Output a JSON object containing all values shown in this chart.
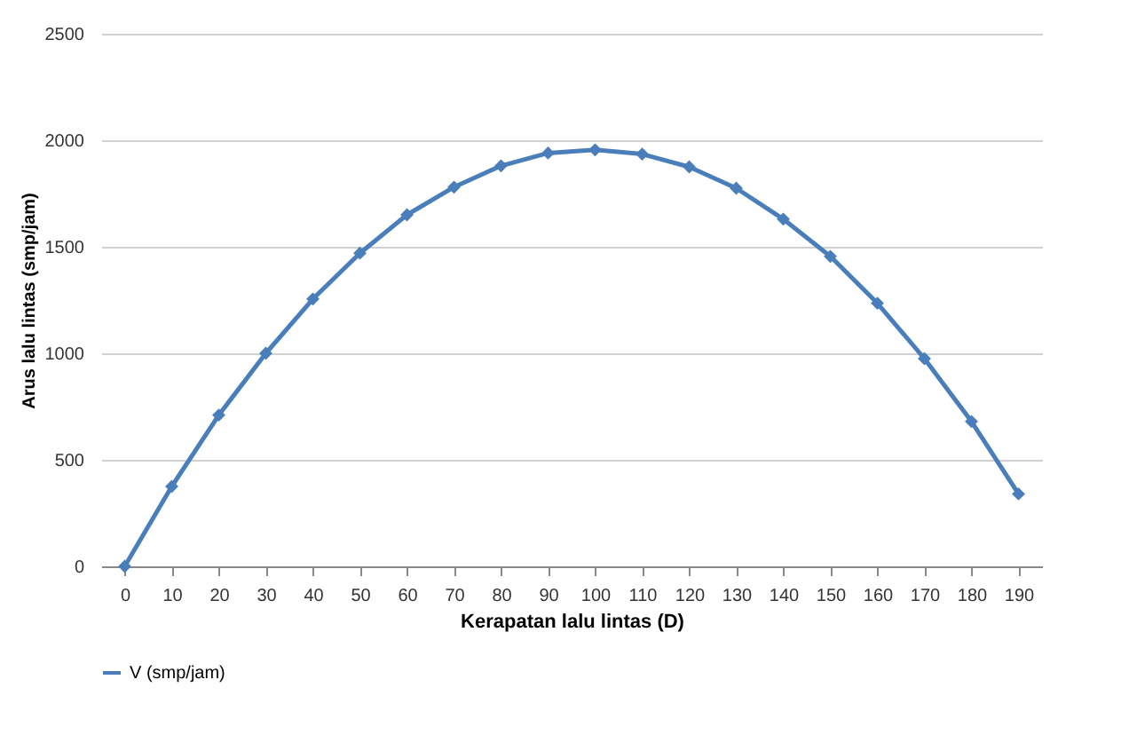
{
  "chart_data": {
    "type": "line",
    "xlabel": "Kerapatan lalu lintas (D)",
    "ylabel": "Arus lalu lintas (smp/jam)",
    "categories": [
      "0",
      "10",
      "20",
      "30",
      "40",
      "50",
      "60",
      "70",
      "80",
      "90",
      "100",
      "110",
      "120",
      "130",
      "140",
      "150",
      "160",
      "170",
      "180",
      "190"
    ],
    "series": [
      {
        "name": "V (smp/jam)",
        "color": "#4a7ebb",
        "values": [
          0,
          375,
          710,
          1000,
          1255,
          1470,
          1650,
          1780,
          1880,
          1940,
          1955,
          1935,
          1875,
          1775,
          1630,
          1455,
          1235,
          975,
          680,
          340
        ]
      }
    ],
    "ylim": [
      0,
      2500
    ],
    "yticks": [
      0,
      500,
      1000,
      1500,
      2000,
      2500
    ],
    "grid": "y",
    "legend": "bottom",
    "marker": "diamond",
    "line_style": "solid"
  }
}
